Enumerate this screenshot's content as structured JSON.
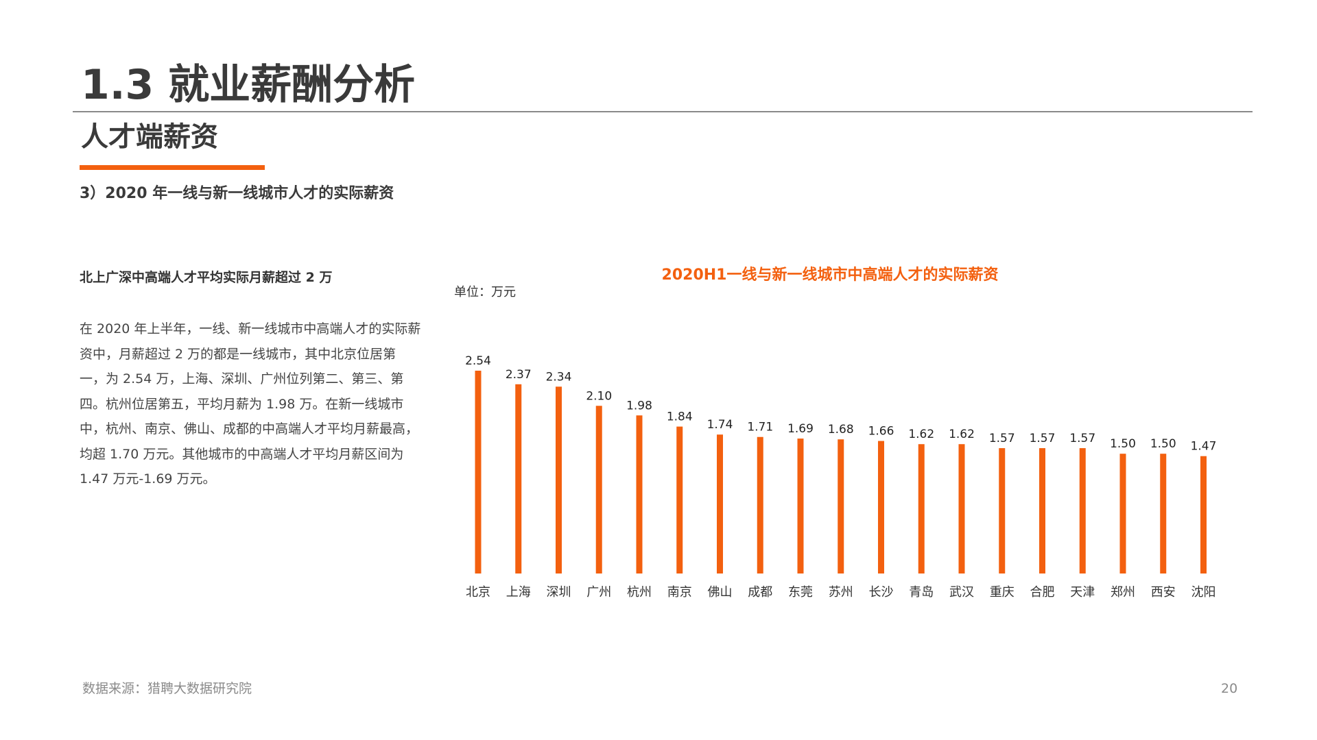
{
  "page": {
    "title": "1.3 就业薪酬分析",
    "section": "人才端薪资",
    "subheading": "3）2020 年一线与新一线城市人才的实际薪资",
    "summary_heading": "北上广深中高端人才平均实际月薪超过 2 万",
    "body": "在 2020 年上半年，一线、新一线城市中高端人才的实际薪资中，月薪超过 2 万的都是一线城市，其中北京位居第一，为 2.54 万，上海、深圳、广州位列第二、第三、第四。杭州位居第五，平均月薪为 1.98 万。在新一线城市中，杭州、南京、佛山、成都的中高端人才平均月薪最高，均超 1.70 万元。其他城市的中高端人才平均月薪区间为 1.47 万元-1.69 万元。",
    "source": "数据来源：猎聘大数据研究院",
    "page_number": "20"
  },
  "colors": {
    "accent": "#f3600f",
    "title_text": "#3a3a3a",
    "muted_text": "#8a8a8a"
  },
  "chart_data": {
    "type": "bar",
    "title": "2020H1一线与新一线城市中高端人才的实际薪资",
    "unit_label": "单位：万元",
    "categories": [
      "北京",
      "上海",
      "深圳",
      "广州",
      "杭州",
      "南京",
      "佛山",
      "成都",
      "东莞",
      "苏州",
      "长沙",
      "青岛",
      "武汉",
      "重庆",
      "合肥",
      "天津",
      "郑州",
      "西安",
      "沈阳"
    ],
    "values": [
      2.54,
      2.37,
      2.34,
      2.1,
      1.98,
      1.84,
      1.74,
      1.71,
      1.69,
      1.68,
      1.66,
      1.62,
      1.62,
      1.57,
      1.57,
      1.57,
      1.5,
      1.5,
      1.47
    ],
    "value_labels": [
      "2.54",
      "2.37",
      "2.34",
      "2.10",
      "1.98",
      "1.84",
      "1.74",
      "1.71",
      "1.69",
      "1.68",
      "1.66",
      "1.62",
      "1.62",
      "1.57",
      "1.57",
      "1.57",
      "1.50",
      "1.50",
      "1.47"
    ],
    "ylim": [
      0,
      2.54
    ],
    "grid": false,
    "color": "#f3600f"
  }
}
